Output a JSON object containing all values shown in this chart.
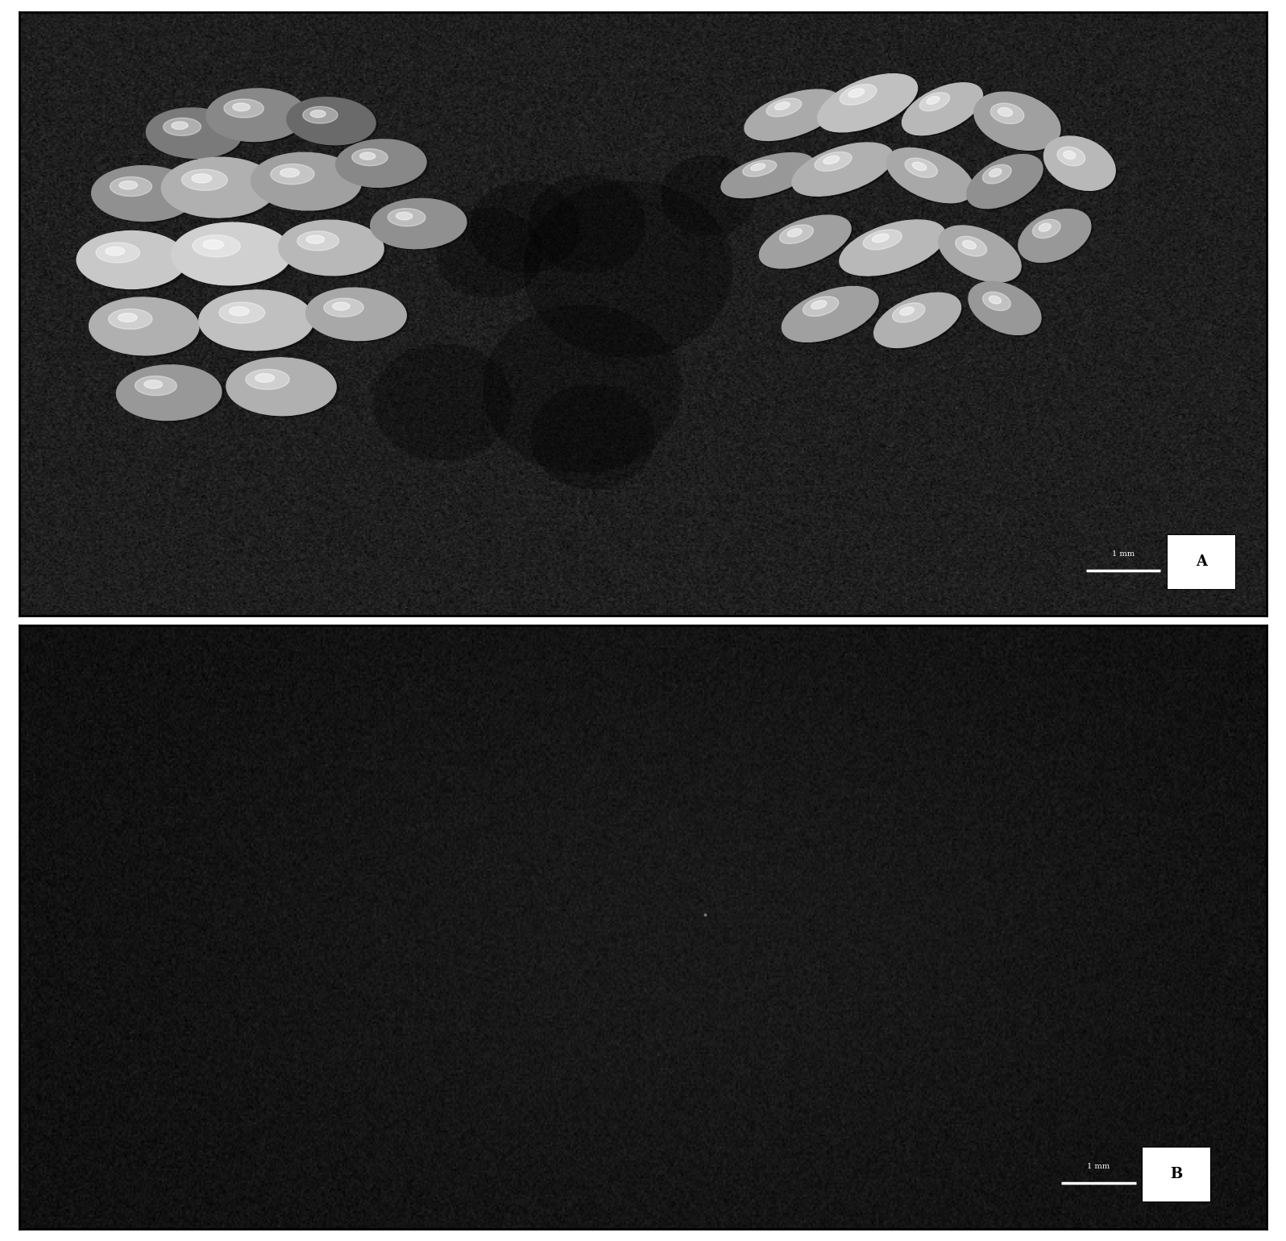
{
  "figure_width": 15.96,
  "figure_height": 15.4,
  "figure_bg": "#ffffff",
  "panel_A": {
    "bg_color": "#111111",
    "label": "A",
    "scale_bar_text": "1 mm",
    "label_box_color": "#ffffff",
    "label_text_color": "#000000"
  },
  "panel_B": {
    "bg_color": "#080808",
    "label": "B",
    "scale_bar_text": "1 mm",
    "label_box_color": "#ffffff",
    "label_text_color": "#000000"
  },
  "border_color": "#000000",
  "border_linewidth": 2,
  "label_fontsize": 13,
  "scalebar_fontsize": 7
}
